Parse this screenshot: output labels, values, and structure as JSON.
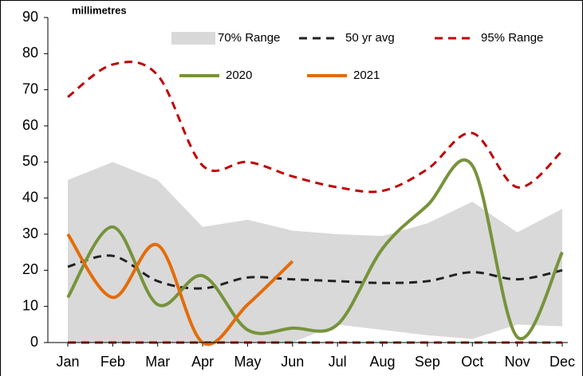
{
  "chart_data": {
    "type": "line",
    "y_label": "millimetres",
    "categories": [
      "Jan",
      "Feb",
      "Mar",
      "Apr",
      "May",
      "Jun",
      "Jul",
      "Aug",
      "Sep",
      "Oct",
      "Nov",
      "Dec"
    ],
    "ylim": [
      0,
      90
    ],
    "yticks": [
      0,
      10,
      20,
      30,
      40,
      50,
      60,
      70,
      80,
      90
    ],
    "series": [
      {
        "name": "70% Range",
        "kind": "band",
        "color": "#d9d9d9",
        "upper": [
          45,
          50,
          45,
          32,
          34,
          31,
          30,
          29.5,
          33,
          39,
          30.5,
          37
        ],
        "lower": [
          0,
          0,
          0,
          0,
          0,
          0,
          5,
          3.5,
          2,
          1,
          5,
          4.5
        ]
      },
      {
        "name": "50 yr avg",
        "color": "#222222",
        "dashed": true,
        "values": [
          21,
          24,
          17,
          15,
          18,
          17.5,
          17,
          16.5,
          17,
          19.5,
          17.5,
          20
        ]
      },
      {
        "name": "95% Range",
        "kind": "range",
        "color": "#c00000",
        "dashed": true,
        "upper": [
          68,
          77,
          74,
          49,
          50,
          46,
          43,
          42,
          48,
          58,
          43,
          53
        ],
        "lower": [
          0,
          0,
          0,
          0,
          0,
          0,
          0,
          0,
          0,
          0,
          0,
          0
        ]
      },
      {
        "name": "2020",
        "color": "#77933c",
        "values": [
          12.5,
          32,
          10.5,
          18.5,
          3.5,
          4,
          5,
          26,
          38,
          49,
          1.5,
          25
        ]
      },
      {
        "name": "2021",
        "color": "#e46c0a",
        "values": [
          30,
          12.5,
          27,
          0,
          10.5,
          22.5,
          null,
          null,
          null,
          null,
          null,
          null
        ]
      }
    ]
  }
}
